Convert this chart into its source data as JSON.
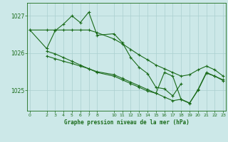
{
  "title": "Graphe pression niveau de la mer (hPa)",
  "bg_color": "#cce8e8",
  "grid_color": "#aacfcf",
  "line_color": "#1a6b1a",
  "xlim": [
    -0.3,
    23.3
  ],
  "ylim": [
    1024.45,
    1027.35
  ],
  "yticks": [
    1025,
    1026,
    1027
  ],
  "xtick_vals": [
    0,
    2,
    3,
    4,
    5,
    6,
    7,
    8,
    10,
    11,
    12,
    13,
    14,
    15,
    16,
    17,
    18,
    19,
    20,
    21,
    22,
    23
  ],
  "xtick_labels": [
    "0",
    "2",
    "3",
    "4",
    "5",
    "6",
    "7",
    "8",
    "10",
    "11",
    "12",
    "13",
    "14",
    "15",
    "16",
    "17",
    "18",
    "19",
    "20",
    "21",
    "22",
    "23"
  ],
  "lines": [
    {
      "x": [
        0,
        2,
        3,
        4,
        5,
        6,
        7,
        8,
        10,
        11,
        12,
        13,
        14,
        15,
        16,
        17,
        18
      ],
      "y": [
        1026.62,
        1026.12,
        1026.6,
        1026.78,
        1027.0,
        1026.82,
        1027.1,
        1026.48,
        1026.52,
        1026.28,
        1025.88,
        1025.62,
        1025.45,
        1025.08,
        1025.04,
        1024.85,
        1025.18
      ]
    },
    {
      "x": [
        0,
        2,
        3,
        4,
        5,
        6,
        7,
        8,
        10,
        11,
        12,
        13,
        14,
        15,
        16,
        17,
        18,
        19,
        20,
        21,
        22,
        23
      ],
      "y": [
        1026.62,
        1026.62,
        1026.62,
        1026.62,
        1026.62,
        1026.62,
        1026.62,
        1026.55,
        1026.38,
        1026.25,
        1026.1,
        1025.95,
        1025.82,
        1025.68,
        1025.58,
        1025.48,
        1025.38,
        1025.42,
        1025.55,
        1025.65,
        1025.55,
        1025.38
      ]
    },
    {
      "x": [
        2,
        3,
        4,
        5,
        6,
        7,
        8,
        10,
        11,
        12,
        13,
        14,
        15,
        16,
        17,
        18,
        19,
        20,
        21,
        22,
        23
      ],
      "y": [
        1026.05,
        1025.98,
        1025.88,
        1025.78,
        1025.68,
        1025.58,
        1025.48,
        1025.38,
        1025.28,
        1025.18,
        1025.08,
        1024.98,
        1024.92,
        1025.48,
        1025.38,
        1024.75,
        1024.65,
        1025.02,
        1025.48,
        1025.38,
        1025.28
      ]
    },
    {
      "x": [
        2,
        3,
        4,
        5,
        6,
        7,
        8,
        10,
        11,
        12,
        13,
        14,
        15,
        16,
        17,
        18,
        19,
        20,
        21,
        22,
        23
      ],
      "y": [
        1025.92,
        1025.85,
        1025.78,
        1025.72,
        1025.65,
        1025.58,
        1025.5,
        1025.42,
        1025.32,
        1025.22,
        1025.12,
        1025.02,
        1024.92,
        1024.82,
        1024.72,
        1024.76,
        1024.66,
        1025.0,
        1025.46,
        1025.38,
        1025.26
      ]
    }
  ]
}
